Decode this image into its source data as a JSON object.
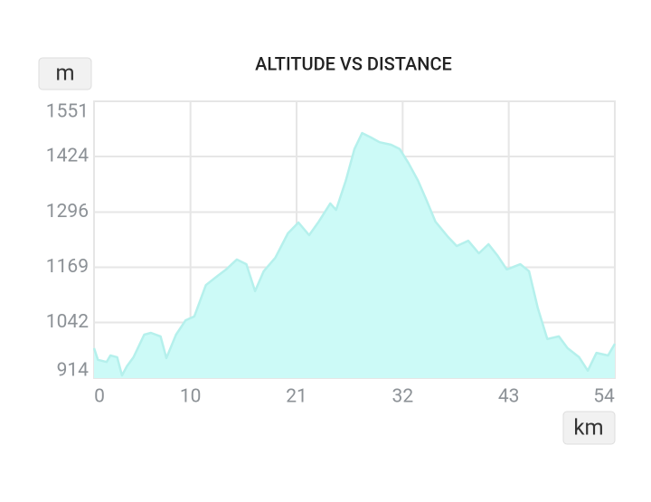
{
  "chart_data": {
    "type": "area",
    "title": "ALTITUDE VS DISTANCE",
    "y_label": "m",
    "x_label": "km",
    "color": "#ccfaf7",
    "line_color": "#b5f0ec",
    "grid": true,
    "xlim": [
      0,
      54
    ],
    "ylim": [
      914,
      1551
    ],
    "xticks": [
      0,
      10,
      21,
      32,
      43,
      54
    ],
    "yticks": [
      914,
      1042,
      1169,
      1296,
      1424,
      1551
    ],
    "x": [
      0,
      0.4,
      1.3,
      1.7,
      2.4,
      2.9,
      3.4,
      4.1,
      5.2,
      5.9,
      6.9,
      7.5,
      8.5,
      9.5,
      10.4,
      11.6,
      12.8,
      13.7,
      14.8,
      15.8,
      16.7,
      17.6,
      18.8,
      20.1,
      21.2,
      22.3,
      23.3,
      24.5,
      25.1,
      26.1,
      27.0,
      27.8,
      28.7,
      29.6,
      30.8,
      31.7,
      32.6,
      33.6,
      34.5,
      35.4,
      36.7,
      37.6,
      38.8,
      39.9,
      40.9,
      41.8,
      42.8,
      44.2,
      45.1,
      46.0,
      47.0,
      48.2,
      49.1,
      50.3,
      51.2,
      52.1,
      53.3,
      54
    ],
    "values": [
      983,
      956,
      951,
      966,
      962,
      920,
      941,
      962,
      1014,
      1018,
      1010,
      960,
      1014,
      1047,
      1056,
      1128,
      1149,
      1164,
      1187,
      1176,
      1114,
      1160,
      1191,
      1247,
      1272,
      1243,
      1274,
      1316,
      1301,
      1368,
      1441,
      1478,
      1468,
      1457,
      1451,
      1441,
      1409,
      1368,
      1322,
      1274,
      1239,
      1218,
      1230,
      1201,
      1222,
      1197,
      1164,
      1176,
      1160,
      1076,
      1004,
      1010,
      983,
      962,
      931,
      972,
      966,
      993
    ]
  }
}
